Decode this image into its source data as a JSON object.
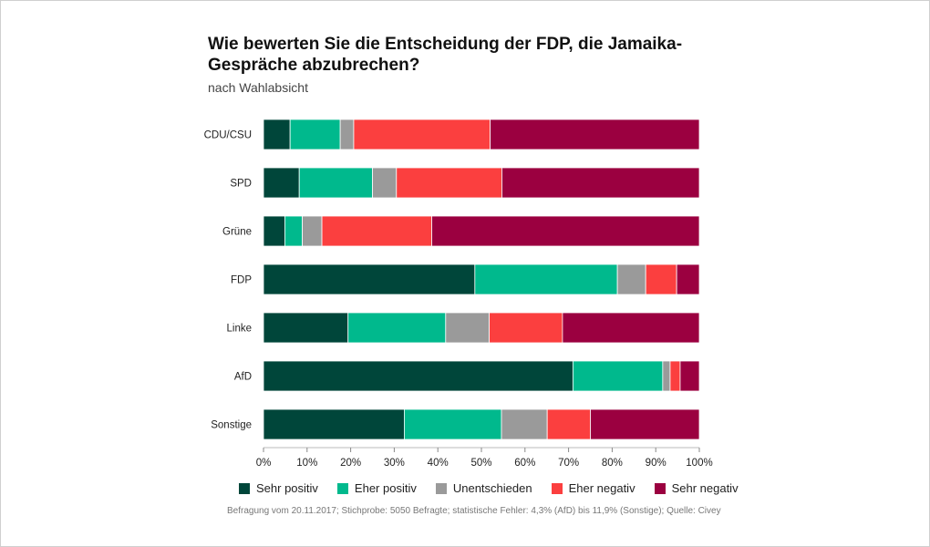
{
  "title": "Wie bewerten Sie die Entscheidung der FDP, die Jamaika-Gespräche abzubrechen?",
  "subtitle": "nach Wahlabsicht",
  "source": "Befragung vom 20.11.2017; Stichprobe: 5050 Befragte; statistische Fehler: 4,3% (AfD) bis 11,9% (Sonstige); Quelle: Civey",
  "chart_data": {
    "type": "bar",
    "orientation": "horizontal",
    "stacked": true,
    "title": "Wie bewerten Sie die Entscheidung der FDP, die Jamaika-Gespräche abzubrechen?",
    "subtitle": "nach Wahlabsicht",
    "categories": [
      "CDU/CSU",
      "SPD",
      "Grüne",
      "FDP",
      "Linke",
      "AfD",
      "Sonstige"
    ],
    "series": [
      {
        "name": "Sehr positiv",
        "color": "#00463a",
        "values": [
          6.1,
          8.2,
          4.9,
          48.5,
          19.4,
          71.0,
          32.3
        ]
      },
      {
        "name": "Eher positiv",
        "color": "#00b98d",
        "values": [
          11.5,
          16.8,
          4.0,
          32.7,
          22.4,
          20.6,
          22.3
        ]
      },
      {
        "name": "Unentschieden",
        "color": "#9a9a9a",
        "values": [
          3.1,
          5.5,
          4.5,
          6.5,
          10.0,
          1.7,
          10.5
        ]
      },
      {
        "name": "Eher negativ",
        "color": "#fb3f3f",
        "values": [
          31.3,
          24.2,
          25.2,
          7.1,
          16.8,
          2.3,
          9.9
        ]
      },
      {
        "name": "Sehr negativ",
        "color": "#9b0040",
        "values": [
          48.0,
          45.3,
          61.4,
          5.2,
          31.4,
          4.4,
          25.0
        ]
      }
    ],
    "xlim": [
      0,
      100
    ],
    "xticks": [
      "0%",
      "10%",
      "20%",
      "30%",
      "40%",
      "50%",
      "60%",
      "70%",
      "80%",
      "90%",
      "100%"
    ],
    "legend_position": "bottom",
    "grid": false
  }
}
